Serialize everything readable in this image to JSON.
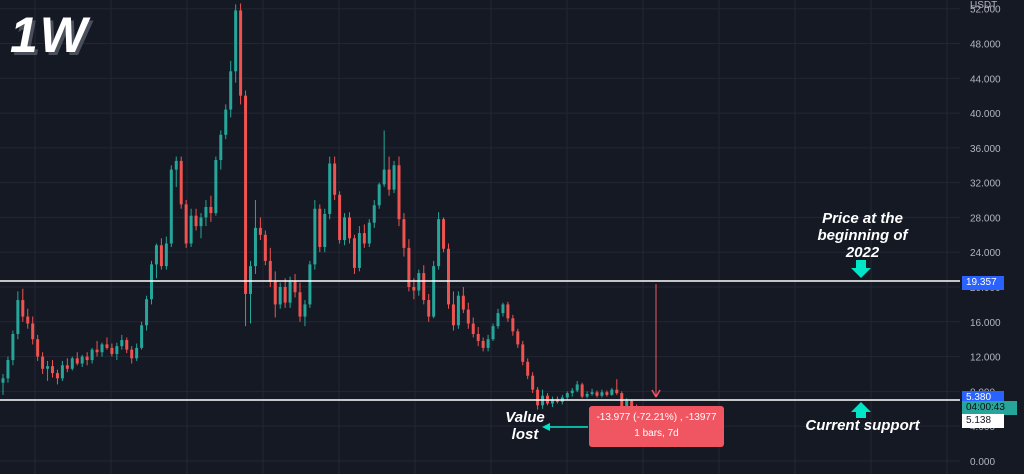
{
  "timeframe_label": "1W",
  "axis_unit": "USDT",
  "annotations": {
    "price_2022": "Price at the beginning of 2022",
    "current_support": "Current support",
    "value_lost": "Value lost"
  },
  "measure": {
    "line1": "-13.977 (-72.21%) , -13977",
    "line2": "1 bars, 7d"
  },
  "price_tags": {
    "level_2022": "19.357",
    "support": "5.380",
    "countdown": "04:00:43",
    "low": "5.138"
  },
  "colors": {
    "background": "#151924",
    "up": "#26a69a",
    "down": "#ef5350",
    "grid": "#232733",
    "level_line": "#ffffff",
    "annotation_arrow": "#00e5c8",
    "measure": "#f05661",
    "tag_blue": "#2962ff",
    "tag_green": "#26a69a"
  },
  "chart_data": {
    "type": "candlestick",
    "title": "",
    "yaxis_ticks": [
      "0.000",
      "4.000",
      "8.000",
      "12.000",
      "16.000",
      "20.000",
      "24.000",
      "28.000",
      "32.000",
      "36.000",
      "40.000",
      "44.000",
      "48.000",
      "52.000"
    ],
    "ylim": [
      -1.5,
      53
    ],
    "horizontal_levels": [
      19.357,
      5.38
    ],
    "candle_count": 130,
    "candles": [
      [
        9,
        10,
        7.6,
        9.5
      ],
      [
        9.5,
        12,
        9,
        11.6
      ],
      [
        11.6,
        15,
        11,
        14.6
      ],
      [
        14.6,
        19.5,
        14,
        18.5
      ],
      [
        18.5,
        19.8,
        16,
        16.6
      ],
      [
        16.6,
        17.5,
        15.2,
        15.8
      ],
      [
        15.8,
        16.6,
        13.4,
        14
      ],
      [
        14,
        14.5,
        11.5,
        12
      ],
      [
        12,
        12.5,
        10,
        10.6
      ],
      [
        10.6,
        11.5,
        9.2,
        10.9
      ],
      [
        10.9,
        11.6,
        9.6,
        10.1
      ],
      [
        10.1,
        10.5,
        8.8,
        9.5
      ],
      [
        9.5,
        11.5,
        9.2,
        11
      ],
      [
        11,
        11.8,
        10.2,
        10.6
      ],
      [
        10.6,
        12,
        10.4,
        11.8
      ],
      [
        11.8,
        12.5,
        11,
        11.2
      ],
      [
        11.2,
        12.2,
        10.8,
        12
      ],
      [
        12,
        12.5,
        11,
        11.6
      ],
      [
        11.6,
        13,
        11.2,
        12.8
      ],
      [
        12.8,
        13.8,
        12,
        12.5
      ],
      [
        12.5,
        13.6,
        12,
        13.4
      ],
      [
        13.4,
        14.2,
        12.8,
        13
      ],
      [
        13,
        13.5,
        12,
        12.3
      ],
      [
        12.3,
        13.6,
        11.6,
        13.2
      ],
      [
        13.2,
        14.5,
        12.8,
        13.9
      ],
      [
        13.9,
        14.2,
        12.4,
        12.8
      ],
      [
        12.8,
        13.2,
        11.2,
        11.8
      ],
      [
        11.8,
        13.5,
        11.5,
        13
      ],
      [
        13,
        16,
        12.8,
        15.6
      ],
      [
        15.6,
        19,
        15,
        18.6
      ],
      [
        18.6,
        23,
        18,
        22.6
      ],
      [
        22.6,
        25,
        21,
        24.8
      ],
      [
        24.8,
        25.6,
        22,
        22.4
      ],
      [
        22.4,
        25.8,
        22,
        25
      ],
      [
        25,
        34,
        24.6,
        33.5
      ],
      [
        33.5,
        35,
        31.5,
        34.5
      ],
      [
        34.5,
        35,
        29,
        29.5
      ],
      [
        29.5,
        30,
        24.5,
        25
      ],
      [
        25,
        29,
        24.6,
        28.2
      ],
      [
        28.2,
        29,
        26.5,
        27
      ],
      [
        27,
        28.5,
        25.6,
        28
      ],
      [
        28,
        30,
        27,
        29.2
      ],
      [
        29.2,
        30.5,
        27.5,
        28.5
      ],
      [
        28.5,
        35,
        28.2,
        34.6
      ],
      [
        34.6,
        38,
        33.5,
        37.5
      ],
      [
        37.5,
        41,
        37,
        40.4
      ],
      [
        40.4,
        46,
        39.5,
        44.8
      ],
      [
        44.8,
        52.5,
        43.5,
        51.8
      ],
      [
        51.8,
        52.6,
        41,
        42
      ],
      [
        42,
        42.6,
        15.5,
        19.2
      ],
      [
        19.2,
        23,
        15.8,
        22.4
      ],
      [
        22.4,
        30,
        21.5,
        26.8
      ],
      [
        26.8,
        28,
        25.4,
        26
      ],
      [
        26,
        26.5,
        22.5,
        23
      ],
      [
        23,
        24.5,
        20,
        20.6
      ],
      [
        20.6,
        21.8,
        16.5,
        18
      ],
      [
        18,
        20.5,
        17.5,
        20
      ],
      [
        20,
        21,
        17.6,
        18.2
      ],
      [
        18.2,
        21.2,
        17.6,
        20.6
      ],
      [
        20.6,
        21.5,
        18.8,
        19.4
      ],
      [
        19.4,
        20.5,
        16,
        16.6
      ],
      [
        16.6,
        18.5,
        15.5,
        18
      ],
      [
        18,
        23,
        17.6,
        22.6
      ],
      [
        22.6,
        30,
        22,
        29
      ],
      [
        29,
        29.5,
        24,
        24.6
      ],
      [
        24.6,
        29,
        24,
        28.4
      ],
      [
        28.4,
        35,
        27.8,
        34.2
      ],
      [
        34.2,
        35,
        30,
        30.6
      ],
      [
        30.6,
        31,
        25,
        25.4
      ],
      [
        25.4,
        28.5,
        24.8,
        28
      ],
      [
        28,
        28.6,
        25,
        25.6
      ],
      [
        25.6,
        26,
        21.5,
        22.2
      ],
      [
        22.2,
        27,
        21.8,
        26.2
      ],
      [
        26.2,
        27.2,
        24.5,
        25
      ],
      [
        25,
        27.8,
        24.6,
        27.4
      ],
      [
        27.4,
        30,
        26.8,
        29.4
      ],
      [
        29.4,
        32,
        29,
        31.8
      ],
      [
        31.8,
        38,
        31.5,
        33.5
      ],
      [
        33.5,
        35,
        30.5,
        31.2
      ],
      [
        31.2,
        34.5,
        30.8,
        34
      ],
      [
        34,
        35,
        27,
        27.8
      ],
      [
        27.8,
        28.5,
        23.5,
        24.5
      ],
      [
        24.5,
        25.5,
        19.5,
        20
      ],
      [
        20,
        21,
        18.6,
        19.6
      ],
      [
        19.6,
        22,
        19,
        21.6
      ],
      [
        21.6,
        22.5,
        18,
        18.5
      ],
      [
        18.5,
        19.2,
        16,
        16.6
      ],
      [
        16.6,
        23,
        16.4,
        22.4
      ],
      [
        22.4,
        28.6,
        22,
        27.8
      ],
      [
        27.8,
        28,
        24,
        24.4
      ],
      [
        24.4,
        25,
        17.5,
        18
      ],
      [
        18,
        19.5,
        15,
        15.6
      ],
      [
        15.6,
        19.5,
        15.2,
        19
      ],
      [
        19,
        20,
        17,
        17.4
      ],
      [
        17.4,
        18.2,
        15.2,
        15.8
      ],
      [
        15.8,
        16.5,
        14.2,
        14.6
      ],
      [
        14.6,
        15.4,
        13.2,
        13.8
      ],
      [
        13.8,
        14.2,
        12.6,
        13
      ],
      [
        13,
        14.5,
        12.6,
        14
      ],
      [
        14,
        15.8,
        13.8,
        15.5
      ],
      [
        15.5,
        17.5,
        15.2,
        17
      ],
      [
        17,
        18.2,
        16.6,
        18
      ],
      [
        18,
        18.3,
        16,
        16.4
      ],
      [
        16.4,
        16.8,
        14.4,
        14.9
      ],
      [
        14.9,
        15.2,
        13,
        13.4
      ],
      [
        13.4,
        13.8,
        11,
        11.4
      ],
      [
        11.4,
        11.8,
        9.4,
        9.8
      ],
      [
        9.8,
        10.2,
        7.8,
        8.2
      ],
      [
        8.2,
        8.5,
        5.9,
        6.4
      ],
      [
        6.4,
        8.2,
        6,
        7.5
      ],
      [
        7.5,
        7.8,
        6.4,
        6.6
      ],
      [
        6.6,
        7.4,
        6.2,
        7.1
      ],
      [
        7.1,
        7.4,
        6.6,
        6.8
      ],
      [
        6.8,
        7.6,
        6.5,
        7.3
      ],
      [
        7.3,
        8,
        7,
        7.8
      ],
      [
        7.8,
        8.4,
        7.4,
        8.1
      ],
      [
        8.1,
        9.2,
        7.9,
        8.8
      ],
      [
        8.8,
        9,
        7.2,
        7.4
      ],
      [
        7.4,
        8,
        7.2,
        7.7
      ],
      [
        7.7,
        8.3,
        7.5,
        7.9
      ],
      [
        7.9,
        8.1,
        7.3,
        7.5
      ],
      [
        7.5,
        8.2,
        7.3,
        7.9
      ],
      [
        7.9,
        8.1,
        7.4,
        7.6
      ],
      [
        7.6,
        8.4,
        7.5,
        8.2
      ],
      [
        8.2,
        9.4,
        7.6,
        7.8
      ],
      [
        7.8,
        8,
        6.1,
        6.3
      ],
      [
        6.3,
        7.2,
        6.1,
        6.9
      ],
      [
        6.9,
        7,
        6.1,
        6.3
      ],
      [
        6.3,
        6.5,
        5.8,
        6
      ],
      [
        6,
        6.2,
        5.3,
        5.4
      ]
    ]
  }
}
